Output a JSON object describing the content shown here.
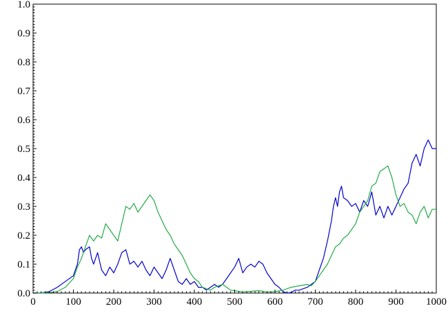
{
  "chart_data": {
    "type": "line",
    "title": "",
    "xlabel": "",
    "ylabel": "",
    "xlim": [
      0,
      1000
    ],
    "ylim": [
      0,
      1.0
    ],
    "grid": false,
    "legend": "none",
    "x_ticks": [
      0,
      100,
      200,
      300,
      400,
      500,
      600,
      700,
      800,
      900,
      1000
    ],
    "x_tick_labels": [
      "0",
      "100",
      "200",
      "300",
      "400",
      "500",
      "600",
      "700",
      "800",
      "900",
      "1000"
    ],
    "y_ticks": [
      0.0,
      0.1,
      0.2,
      0.3,
      0.4,
      0.5,
      0.6,
      0.7,
      0.8,
      0.9,
      1.0
    ],
    "y_tick_labels": [
      "0.0",
      "0.1",
      "0.2",
      "0.3",
      "0.4",
      "0.5",
      "0.6",
      "0.7",
      "0.8",
      "0.9",
      "1.0"
    ],
    "series": [
      {
        "color": "#0000cc",
        "points": [
          [
            0,
            0.0
          ],
          [
            20,
            0.0
          ],
          [
            40,
            0.005
          ],
          [
            60,
            0.02
          ],
          [
            80,
            0.04
          ],
          [
            100,
            0.06
          ],
          [
            110,
            0.1
          ],
          [
            115,
            0.15
          ],
          [
            120,
            0.16
          ],
          [
            125,
            0.14
          ],
          [
            130,
            0.15
          ],
          [
            140,
            0.16
          ],
          [
            145,
            0.12
          ],
          [
            150,
            0.1
          ],
          [
            160,
            0.14
          ],
          [
            170,
            0.08
          ],
          [
            180,
            0.06
          ],
          [
            190,
            0.09
          ],
          [
            200,
            0.07
          ],
          [
            210,
            0.1
          ],
          [
            220,
            0.14
          ],
          [
            230,
            0.15
          ],
          [
            240,
            0.1
          ],
          [
            250,
            0.11
          ],
          [
            260,
            0.09
          ],
          [
            270,
            0.11
          ],
          [
            280,
            0.08
          ],
          [
            290,
            0.06
          ],
          [
            300,
            0.09
          ],
          [
            310,
            0.07
          ],
          [
            320,
            0.05
          ],
          [
            330,
            0.08
          ],
          [
            340,
            0.12
          ],
          [
            350,
            0.08
          ],
          [
            360,
            0.04
          ],
          [
            370,
            0.03
          ],
          [
            380,
            0.05
          ],
          [
            390,
            0.03
          ],
          [
            400,
            0.04
          ],
          [
            410,
            0.02
          ],
          [
            420,
            0.02
          ],
          [
            430,
            0.01
          ],
          [
            440,
            0.02
          ],
          [
            450,
            0.03
          ],
          [
            460,
            0.02
          ],
          [
            470,
            0.03
          ],
          [
            480,
            0.05
          ],
          [
            490,
            0.07
          ],
          [
            500,
            0.09
          ],
          [
            510,
            0.12
          ],
          [
            520,
            0.07
          ],
          [
            530,
            0.09
          ],
          [
            540,
            0.1
          ],
          [
            550,
            0.09
          ],
          [
            560,
            0.11
          ],
          [
            570,
            0.1
          ],
          [
            580,
            0.07
          ],
          [
            590,
            0.05
          ],
          [
            600,
            0.03
          ],
          [
            610,
            0.02
          ],
          [
            620,
            0.005
          ],
          [
            630,
            0.0
          ],
          [
            640,
            0.002
          ],
          [
            650,
            0.01
          ],
          [
            660,
            0.01
          ],
          [
            670,
            0.015
          ],
          [
            680,
            0.02
          ],
          [
            690,
            0.03
          ],
          [
            700,
            0.04
          ],
          [
            710,
            0.08
          ],
          [
            720,
            0.12
          ],
          [
            730,
            0.18
          ],
          [
            740,
            0.25
          ],
          [
            745,
            0.3
          ],
          [
            750,
            0.33
          ],
          [
            755,
            0.3
          ],
          [
            760,
            0.35
          ],
          [
            765,
            0.37
          ],
          [
            770,
            0.33
          ],
          [
            780,
            0.32
          ],
          [
            790,
            0.3
          ],
          [
            800,
            0.31
          ],
          [
            810,
            0.28
          ],
          [
            820,
            0.32
          ],
          [
            830,
            0.3
          ],
          [
            840,
            0.35
          ],
          [
            850,
            0.27
          ],
          [
            860,
            0.3
          ],
          [
            870,
            0.26
          ],
          [
            880,
            0.3
          ],
          [
            890,
            0.27
          ],
          [
            900,
            0.3
          ],
          [
            910,
            0.33
          ],
          [
            920,
            0.36
          ],
          [
            930,
            0.38
          ],
          [
            940,
            0.45
          ],
          [
            950,
            0.48
          ],
          [
            960,
            0.44
          ],
          [
            970,
            0.5
          ],
          [
            980,
            0.53
          ],
          [
            990,
            0.5
          ],
          [
            1000,
            0.5
          ]
        ]
      },
      {
        "color": "#22aa44",
        "points": [
          [
            0,
            0.0
          ],
          [
            20,
            0.0
          ],
          [
            40,
            0.002
          ],
          [
            60,
            0.005
          ],
          [
            80,
            0.02
          ],
          [
            100,
            0.05
          ],
          [
            110,
            0.09
          ],
          [
            120,
            0.12
          ],
          [
            130,
            0.16
          ],
          [
            140,
            0.2
          ],
          [
            150,
            0.18
          ],
          [
            160,
            0.2
          ],
          [
            170,
            0.19
          ],
          [
            180,
            0.24
          ],
          [
            190,
            0.22
          ],
          [
            200,
            0.2
          ],
          [
            210,
            0.18
          ],
          [
            220,
            0.24
          ],
          [
            230,
            0.3
          ],
          [
            240,
            0.29
          ],
          [
            250,
            0.31
          ],
          [
            260,
            0.28
          ],
          [
            270,
            0.3
          ],
          [
            280,
            0.32
          ],
          [
            290,
            0.34
          ],
          [
            300,
            0.32
          ],
          [
            310,
            0.28
          ],
          [
            320,
            0.25
          ],
          [
            330,
            0.22
          ],
          [
            340,
            0.2
          ],
          [
            350,
            0.17
          ],
          [
            360,
            0.15
          ],
          [
            370,
            0.13
          ],
          [
            380,
            0.1
          ],
          [
            390,
            0.07
          ],
          [
            400,
            0.05
          ],
          [
            410,
            0.04
          ],
          [
            420,
            0.02
          ],
          [
            430,
            0.015
          ],
          [
            440,
            0.01
          ],
          [
            450,
            0.02
          ],
          [
            460,
            0.025
          ],
          [
            470,
            0.03
          ],
          [
            480,
            0.02
          ],
          [
            490,
            0.01
          ],
          [
            500,
            0.008
          ],
          [
            520,
            0.004
          ],
          [
            540,
            0.006
          ],
          [
            560,
            0.008
          ],
          [
            580,
            0.004
          ],
          [
            600,
            0.005
          ],
          [
            620,
            0.01
          ],
          [
            640,
            0.02
          ],
          [
            660,
            0.025
          ],
          [
            680,
            0.03
          ],
          [
            690,
            0.025
          ],
          [
            700,
            0.04
          ],
          [
            710,
            0.06
          ],
          [
            720,
            0.08
          ],
          [
            730,
            0.1
          ],
          [
            740,
            0.13
          ],
          [
            750,
            0.16
          ],
          [
            760,
            0.17
          ],
          [
            770,
            0.19
          ],
          [
            780,
            0.2
          ],
          [
            790,
            0.22
          ],
          [
            800,
            0.24
          ],
          [
            810,
            0.28
          ],
          [
            820,
            0.3
          ],
          [
            830,
            0.32
          ],
          [
            840,
            0.37
          ],
          [
            850,
            0.38
          ],
          [
            860,
            0.42
          ],
          [
            870,
            0.43
          ],
          [
            880,
            0.44
          ],
          [
            890,
            0.4
          ],
          [
            900,
            0.34
          ],
          [
            910,
            0.3
          ],
          [
            920,
            0.31
          ],
          [
            930,
            0.28
          ],
          [
            940,
            0.27
          ],
          [
            950,
            0.24
          ],
          [
            960,
            0.28
          ],
          [
            970,
            0.3
          ],
          [
            980,
            0.26
          ],
          [
            990,
            0.29
          ],
          [
            1000,
            0.29
          ]
        ]
      }
    ]
  }
}
